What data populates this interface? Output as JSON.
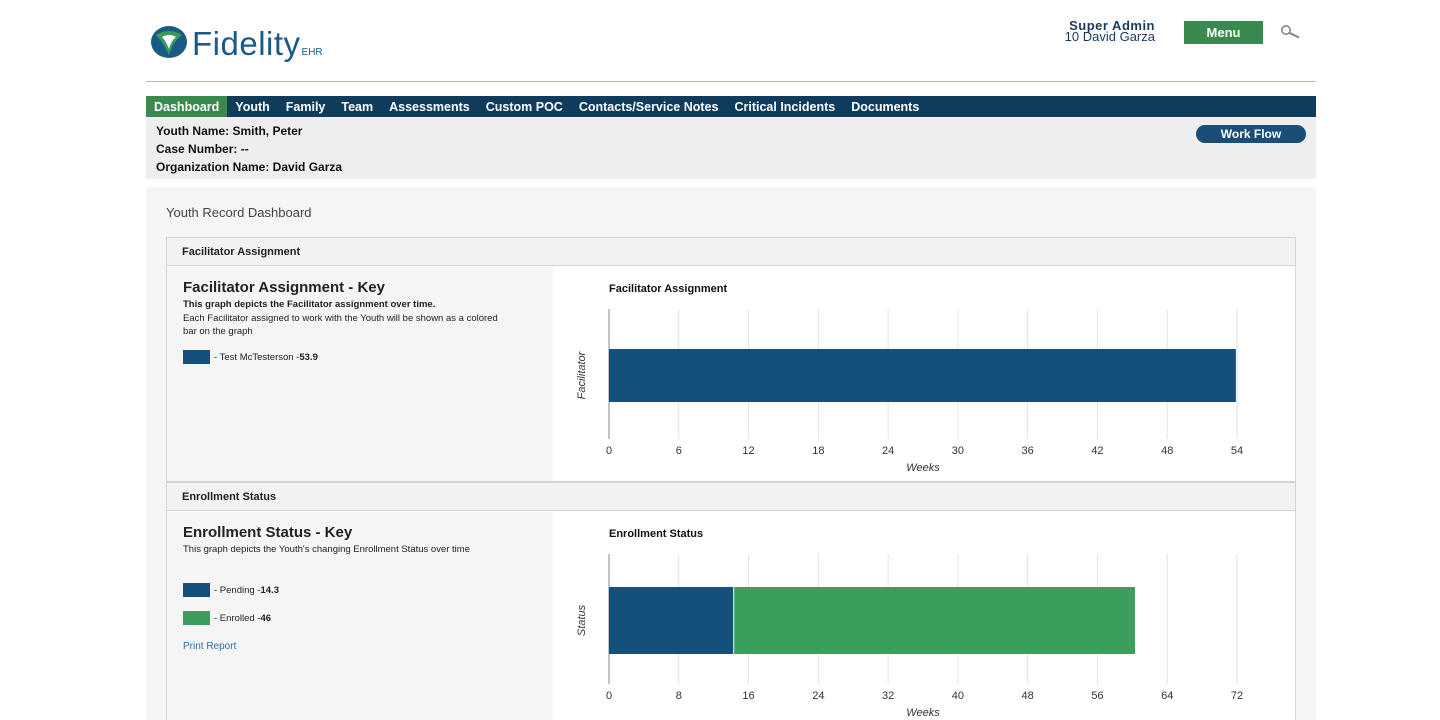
{
  "header": {
    "logo_text": "Fidelity",
    "logo_sub": "EHR",
    "user_role": "Super Admin",
    "user_name": "10 David Garza",
    "menu_label": "Menu",
    "search_icon": "search-icon"
  },
  "nav": {
    "items": [
      "Dashboard",
      "Youth",
      "Family",
      "Team",
      "Assessments",
      "Custom POC",
      "Contacts/Service Notes",
      "Critical Incidents",
      "Documents"
    ],
    "active": "Dashboard"
  },
  "youth": {
    "name_line": "Youth Name: Smith, Peter",
    "case_line": "Case Number: --",
    "org_line": "Organization Name: David Garza",
    "workflow_label": "Work Flow"
  },
  "dashboard": {
    "title": "Youth Record Dashboard",
    "facilitator": {
      "header": "Facilitator Assignment",
      "key_title": "Facilitator Assignment - Key",
      "desc_bold": "This graph depicts the Facilitator assignment over time.",
      "desc_rest": "Each Facilitator assigned to work with the Youth will be shown as a colored bar on the graph",
      "legend": [
        {
          "label": "- Test McTesterson - ",
          "value": "53.9",
          "color": "#15507d"
        }
      ]
    },
    "enrollment": {
      "header": "Enrollment Status",
      "key_title": "Enrollment Status - Key",
      "desc": "This graph depicts the Youth's changing Enrollment Status over time",
      "legend": [
        {
          "label": "- Pending - ",
          "value": "14.3",
          "color": "#15507d"
        },
        {
          "label": "- Enrolled - ",
          "value": "46",
          "color": "#3b9e5c"
        }
      ],
      "print_label": "Print Report"
    }
  },
  "chart_data": [
    {
      "type": "bar",
      "orientation": "horizontal",
      "title": "Facilitator Assignment",
      "xlabel": "Weeks",
      "ylabel": "Facilitator",
      "xlim": [
        0,
        54
      ],
      "xticks": [
        "0",
        "6",
        "12",
        "18",
        "24",
        "30",
        "36",
        "42",
        "48",
        "54"
      ],
      "stacked": true,
      "series": [
        {
          "name": "Test McTesterson",
          "values": [
            53.9
          ],
          "color": "#15507d"
        }
      ],
      "grid": true
    },
    {
      "type": "bar",
      "orientation": "horizontal",
      "title": "Enrollment Status",
      "xlabel": "Weeks",
      "ylabel": "Status",
      "xlim": [
        0,
        72
      ],
      "xticks": [
        "0",
        "8",
        "16",
        "24",
        "32",
        "40",
        "48",
        "56",
        "64",
        "72"
      ],
      "stacked": true,
      "series": [
        {
          "name": "Pending",
          "values": [
            14.3
          ],
          "color": "#15507d"
        },
        {
          "name": "Enrolled",
          "values": [
            46
          ],
          "color": "#3b9e5c"
        }
      ],
      "grid": true
    }
  ]
}
